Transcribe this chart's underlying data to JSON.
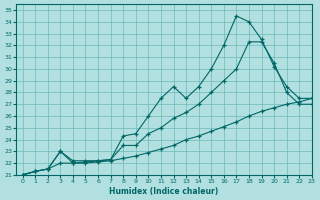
{
  "xlabel": "Humidex (Indice chaleur)",
  "ylabel": "",
  "bg_color": "#b2e0e0",
  "grid_color": "#6db8b8",
  "line_color": "#006666",
  "xlim": [
    -0.5,
    23
  ],
  "ylim": [
    21,
    35.5
  ],
  "xticks": [
    0,
    1,
    2,
    3,
    4,
    5,
    6,
    7,
    8,
    9,
    10,
    11,
    12,
    13,
    14,
    15,
    16,
    17,
    18,
    19,
    20,
    21,
    22,
    23
  ],
  "yticks": [
    21,
    22,
    23,
    24,
    25,
    26,
    27,
    28,
    29,
    30,
    31,
    32,
    33,
    34,
    35
  ],
  "curve1_x": [
    0,
    1,
    2,
    3,
    4,
    5,
    6,
    7,
    8,
    9,
    10,
    11,
    12,
    13,
    14,
    15,
    16,
    17,
    18,
    19,
    20,
    21,
    22,
    23
  ],
  "curve1_y": [
    21.0,
    21.3,
    21.5,
    23.0,
    22.2,
    22.2,
    22.2,
    22.3,
    24.3,
    24.5,
    26.0,
    27.5,
    28.5,
    27.5,
    28.5,
    30.0,
    32.0,
    34.5,
    34.0,
    32.5,
    30.2,
    28.5,
    27.5,
    27.5
  ],
  "curve2_x": [
    0,
    1,
    2,
    3,
    4,
    5,
    6,
    7,
    8,
    9,
    10,
    11,
    12,
    13,
    14,
    15,
    16,
    17,
    18,
    19,
    20,
    21,
    22,
    23
  ],
  "curve2_y": [
    21.0,
    21.3,
    21.5,
    23.0,
    22.0,
    22.1,
    22.2,
    22.3,
    23.5,
    23.5,
    24.5,
    25.0,
    25.8,
    26.3,
    27.0,
    28.0,
    29.0,
    30.0,
    32.3,
    32.3,
    30.5,
    28.0,
    27.0,
    27.0
  ],
  "curve3_x": [
    0,
    1,
    2,
    3,
    4,
    5,
    6,
    7,
    8,
    9,
    10,
    11,
    12,
    13,
    14,
    15,
    16,
    17,
    18,
    19,
    20,
    21,
    22,
    23
  ],
  "curve3_y": [
    21.0,
    21.3,
    21.5,
    22.0,
    22.0,
    22.0,
    22.1,
    22.2,
    22.4,
    22.6,
    22.9,
    23.2,
    23.5,
    24.0,
    24.3,
    24.7,
    25.1,
    25.5,
    26.0,
    26.4,
    26.7,
    27.0,
    27.2,
    27.5
  ]
}
